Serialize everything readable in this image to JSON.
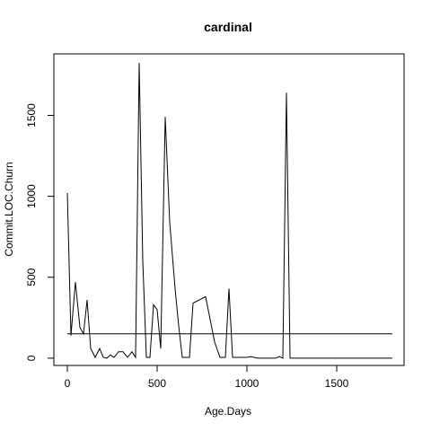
{
  "chart_data": {
    "type": "line",
    "title": "cardinal",
    "xlabel": "Age.Days",
    "ylabel": "Commit.LOC.Churn",
    "xlim": [
      -75,
      1875
    ],
    "ylim": [
      -45,
      1880
    ],
    "xticks": [
      0,
      500,
      1000,
      1500
    ],
    "yticks": [
      0,
      500,
      1000,
      1500
    ],
    "grid": false,
    "legend": "none",
    "series": [
      {
        "x": [
          0,
          20,
          45,
          70,
          90,
          110,
          130,
          155,
          180,
          200,
          220,
          240,
          260,
          285,
          310,
          335,
          360,
          380,
          400,
          420,
          440,
          460,
          480,
          500,
          520,
          545,
          570,
          600,
          620,
          640,
          680,
          700,
          770,
          820,
          850,
          880,
          900,
          920,
          960,
          1000,
          1020,
          1060,
          1100,
          1160,
          1180,
          1200,
          1220,
          1240,
          1280,
          1400,
          1600,
          1810
        ],
        "y": [
          1020,
          140,
          470,
          190,
          150,
          360,
          60,
          5,
          60,
          5,
          0,
          20,
          5,
          40,
          40,
          5,
          40,
          5,
          1825,
          600,
          5,
          5,
          330,
          300,
          60,
          1490,
          840,
          430,
          200,
          5,
          5,
          340,
          380,
          100,
          5,
          5,
          430,
          5,
          5,
          5,
          10,
          0,
          0,
          0,
          10,
          0,
          1640,
          0,
          0,
          0,
          0,
          0
        ]
      },
      {
        "x": [
          0,
          1810
        ],
        "y": [
          150,
          150
        ]
      }
    ]
  }
}
